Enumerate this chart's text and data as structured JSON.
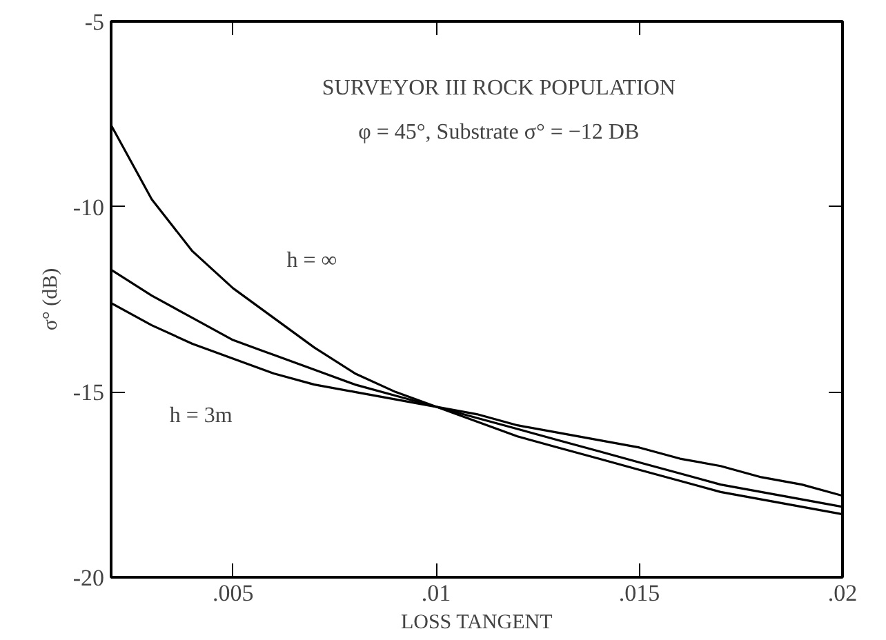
{
  "chart_data": {
    "type": "line",
    "title": "SURVEYOR III ROCK POPULATION",
    "subtitle": "φ = 45°, Substrate σ° = −12 DB",
    "xlabel": "LOSS TANGENT",
    "ylabel": "σ° (dB)",
    "x": [
      0.002,
      0.003,
      0.004,
      0.005,
      0.006,
      0.007,
      0.008,
      0.009,
      0.01,
      0.011,
      0.012,
      0.013,
      0.014,
      0.015,
      0.016,
      0.017,
      0.018,
      0.019,
      0.02
    ],
    "series": [
      {
        "color": "#000000",
        "values": [
          -7.8,
          -9.8,
          -11.2,
          -12.2,
          -13.0,
          -13.8,
          -14.5,
          -15.0,
          -15.4,
          -15.8,
          -16.2,
          -16.5,
          -16.8,
          -17.1,
          -17.4,
          -17.7,
          -17.9,
          -18.1,
          -18.3
        ]
      },
      {
        "color": "#000000",
        "values": [
          -11.7,
          -12.4,
          -13.0,
          -13.6,
          -14.0,
          -14.4,
          -14.8,
          -15.1,
          -15.4,
          -15.7,
          -16.0,
          -16.3,
          -16.6,
          -16.9,
          -17.2,
          -17.5,
          -17.7,
          -17.9,
          -18.1
        ]
      },
      {
        "color": "#000000",
        "values": [
          -12.6,
          -13.2,
          -13.7,
          -14.1,
          -14.5,
          -14.8,
          -15.0,
          -15.2,
          -15.4,
          -15.6,
          -15.9,
          -16.1,
          -16.3,
          -16.5,
          -16.8,
          -17.0,
          -17.3,
          -17.5,
          -17.8
        ]
      }
    ],
    "annotations": [
      "h = ∞",
      "h = 3m"
    ],
    "xlim": [
      0.002,
      0.02
    ],
    "ylim": [
      -20,
      -5
    ],
    "xticks": [
      {
        "value": 0.005,
        "label": ".005"
      },
      {
        "value": 0.01,
        "label": ".01"
      },
      {
        "value": 0.015,
        "label": ".015"
      },
      {
        "value": 0.02,
        "label": ".02"
      }
    ],
    "yticks": [
      -20,
      -15,
      -10,
      -5
    ],
    "grid": false,
    "marker": "none",
    "line_style": "solid"
  }
}
